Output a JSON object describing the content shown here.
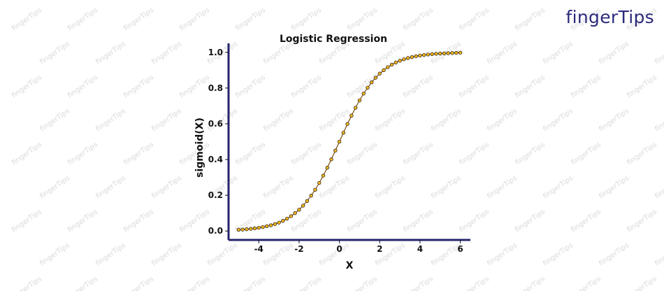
{
  "brand": {
    "logo_text": "fingerTips",
    "watermark_text": "fingerTips",
    "color": "#2b2a7b"
  },
  "chart_data": {
    "type": "scatter",
    "title": "Logistic Regression",
    "xlabel": "X",
    "ylabel": "sigmoid(X)",
    "xlim": [
      -5.5,
      6.5
    ],
    "ylim": [
      -0.05,
      1.05
    ],
    "xticks": [
      -4,
      -2,
      0,
      2,
      4,
      6
    ],
    "xtick_labels": [
      "-4",
      "-2",
      "0",
      "2",
      "4",
      "6"
    ],
    "yticks": [
      0.0,
      0.2,
      0.4,
      0.6,
      0.8,
      1.0
    ],
    "ytick_labels": [
      "0.0",
      "0.2",
      "0.4",
      "0.6",
      "0.8",
      "1.0"
    ],
    "grid": false,
    "axis_color": "#26246e",
    "series": [
      {
        "marker_fill": "#f2b51c",
        "marker_edge": "#111111",
        "line_color": "#7a4a10",
        "x": [
          -5.0,
          -4.8,
          -4.6,
          -4.4,
          -4.2,
          -4.0,
          -3.8,
          -3.6,
          -3.4,
          -3.2,
          -3.0,
          -2.8,
          -2.6,
          -2.4,
          -2.2,
          -2.0,
          -1.8,
          -1.6,
          -1.4,
          -1.2,
          -1.0,
          -0.8,
          -0.6,
          -0.4,
          -0.2,
          0.0,
          0.2,
          0.4,
          0.6,
          0.8,
          1.0,
          1.2,
          1.4,
          1.6,
          1.8,
          2.0,
          2.2,
          2.4,
          2.6,
          2.8,
          3.0,
          3.2,
          3.4,
          3.6,
          3.8,
          4.0,
          4.2,
          4.4,
          4.6,
          4.8,
          5.0,
          5.2,
          5.4,
          5.6,
          5.8,
          6.0
        ],
        "y": [
          0.007,
          0.008,
          0.01,
          0.012,
          0.015,
          0.018,
          0.022,
          0.027,
          0.032,
          0.039,
          0.047,
          0.057,
          0.069,
          0.083,
          0.1,
          0.119,
          0.142,
          0.168,
          0.198,
          0.231,
          0.269,
          0.31,
          0.354,
          0.401,
          0.45,
          0.5,
          0.55,
          0.599,
          0.646,
          0.69,
          0.731,
          0.769,
          0.802,
          0.832,
          0.858,
          0.881,
          0.9,
          0.917,
          0.931,
          0.943,
          0.953,
          0.961,
          0.968,
          0.973,
          0.978,
          0.982,
          0.985,
          0.988,
          0.99,
          0.992,
          0.993,
          0.994,
          0.995,
          0.996,
          0.997,
          0.998
        ]
      }
    ]
  }
}
